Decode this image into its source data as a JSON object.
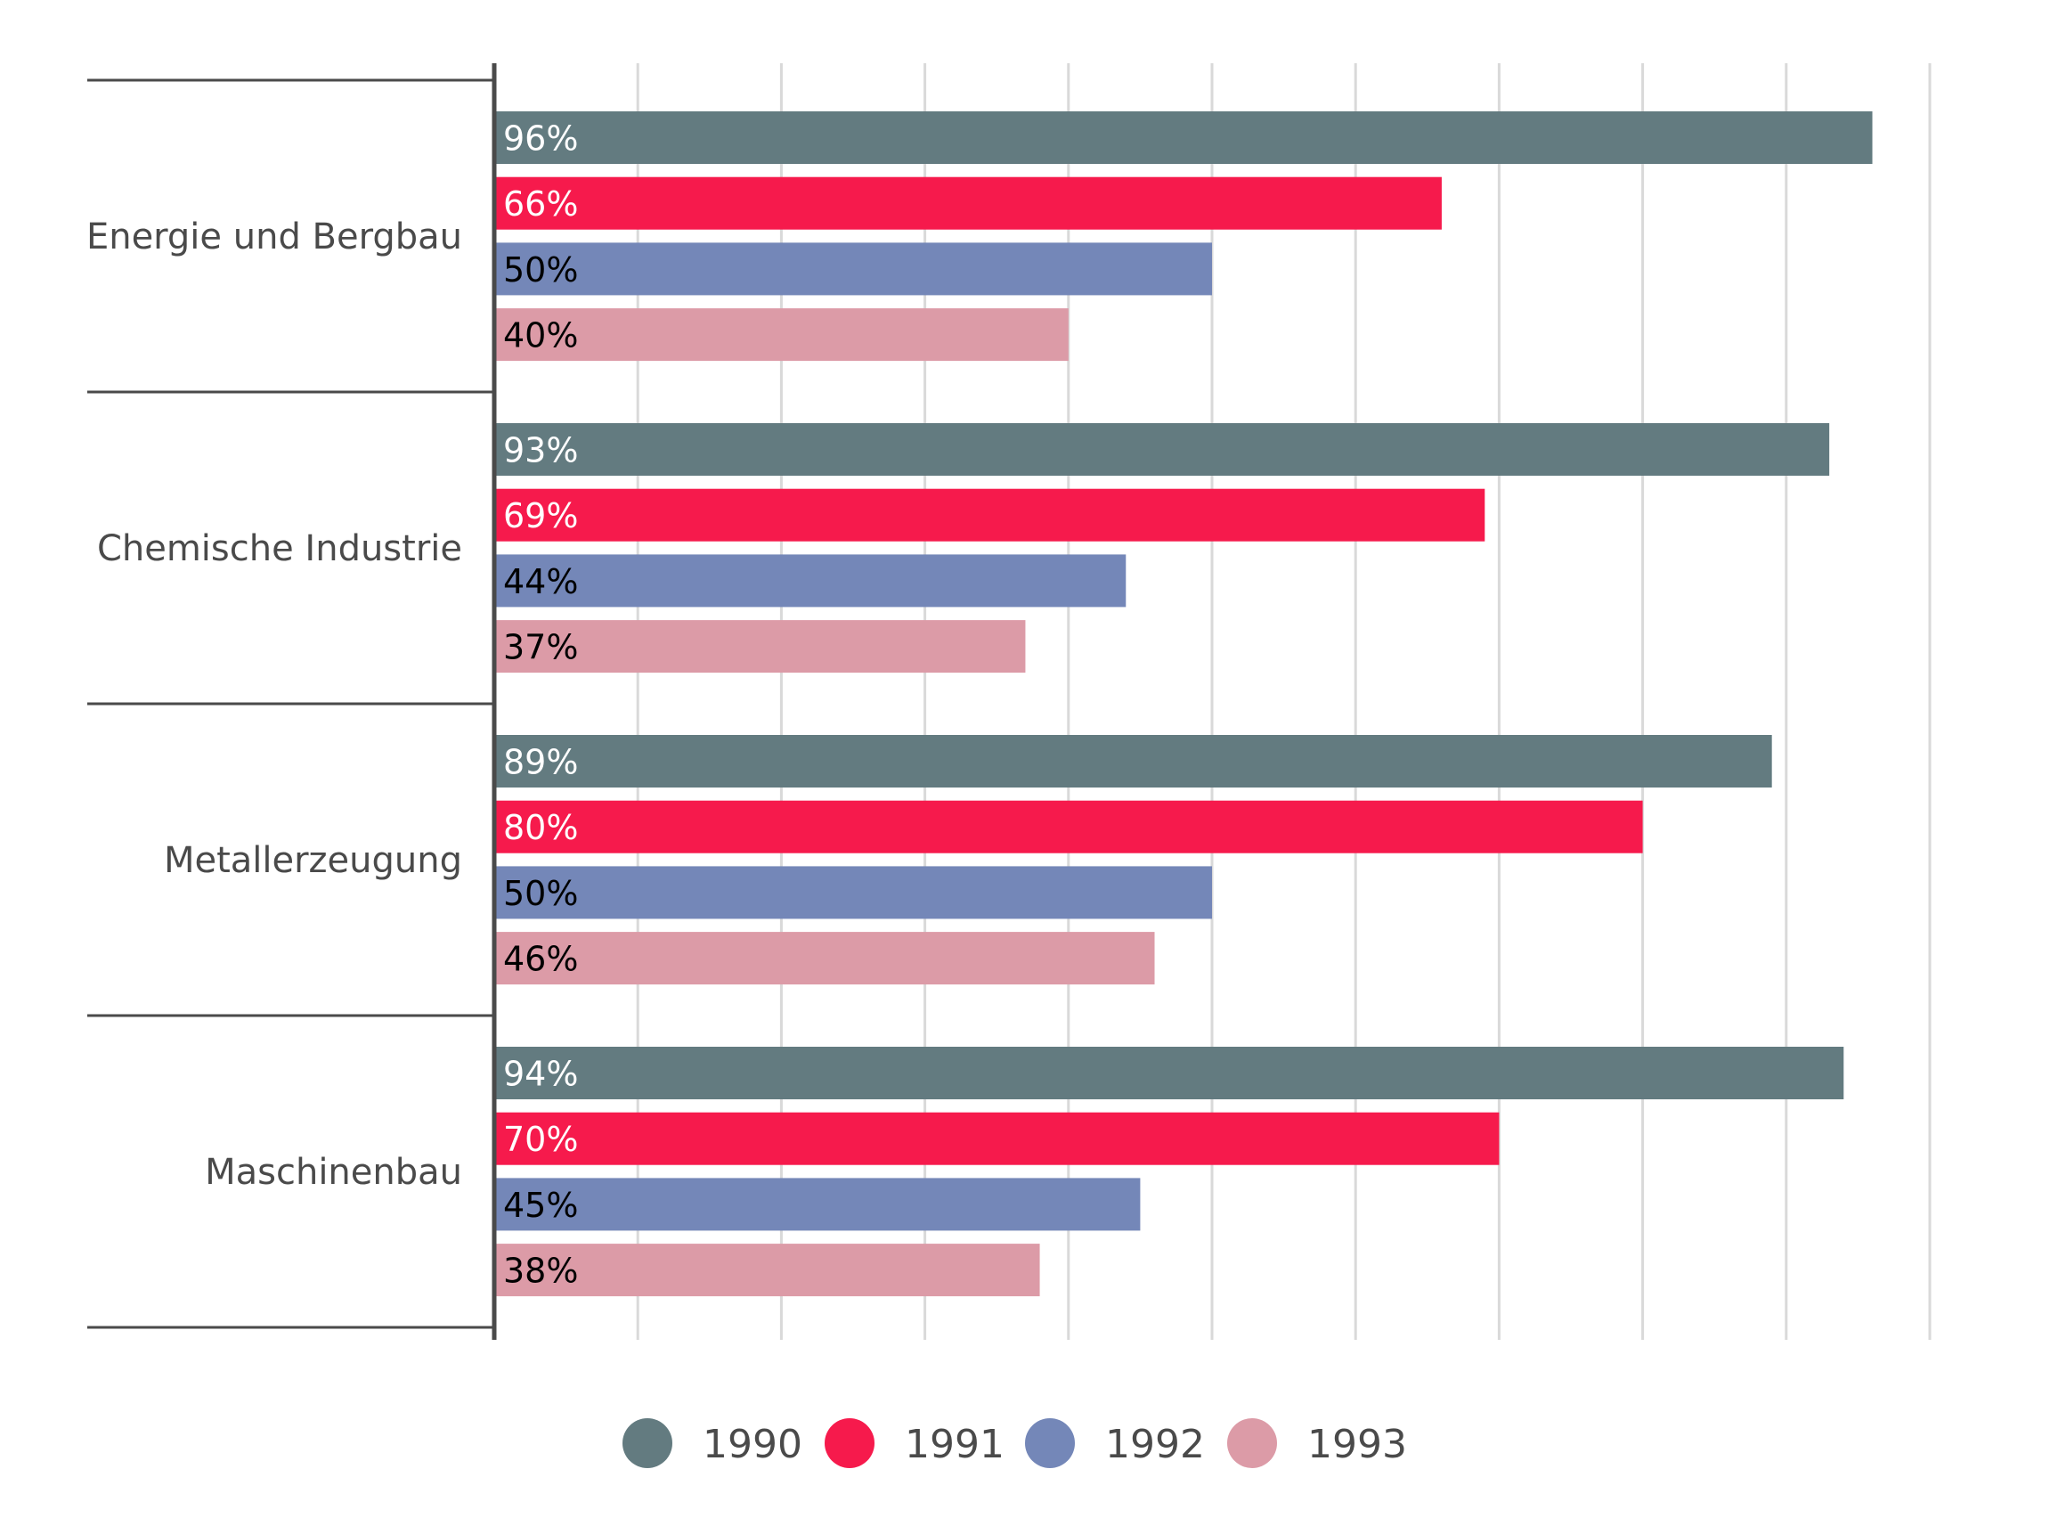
{
  "chart_data": {
    "type": "bar",
    "orientation": "horizontal",
    "title": "",
    "xlabel": "",
    "ylabel": "",
    "xlim": [
      0,
      100
    ],
    "value_unit": "%",
    "grid": true,
    "x_tick_labels_shown": false,
    "categories": [
      "Energie und Bergbau",
      "Chemische Industrie",
      "Metallerzeugung",
      "Maschinenbau"
    ],
    "series": [
      {
        "name": "1990",
        "color": "#637b80",
        "label_color": "#ffffff",
        "values": [
          96,
          93,
          89,
          94
        ]
      },
      {
        "name": "1991",
        "color": "#f61a4c",
        "label_color": "#ffffff",
        "values": [
          66,
          69,
          80,
          70
        ]
      },
      {
        "name": "1992",
        "color": "#7487b8",
        "label_color": "#000000",
        "values": [
          50,
          44,
          50,
          45
        ]
      },
      {
        "name": "1993",
        "color": "#dc9ba7",
        "label_color": "#000000",
        "values": [
          40,
          37,
          46,
          38
        ]
      }
    ],
    "legend": {
      "position": "bottom-center",
      "entries": [
        "1990",
        "1991",
        "1992",
        "1993"
      ]
    }
  },
  "colors": {
    "axis": "#4a4a4a",
    "grid": "#d9d9d9",
    "text": "#4a4a4a"
  }
}
